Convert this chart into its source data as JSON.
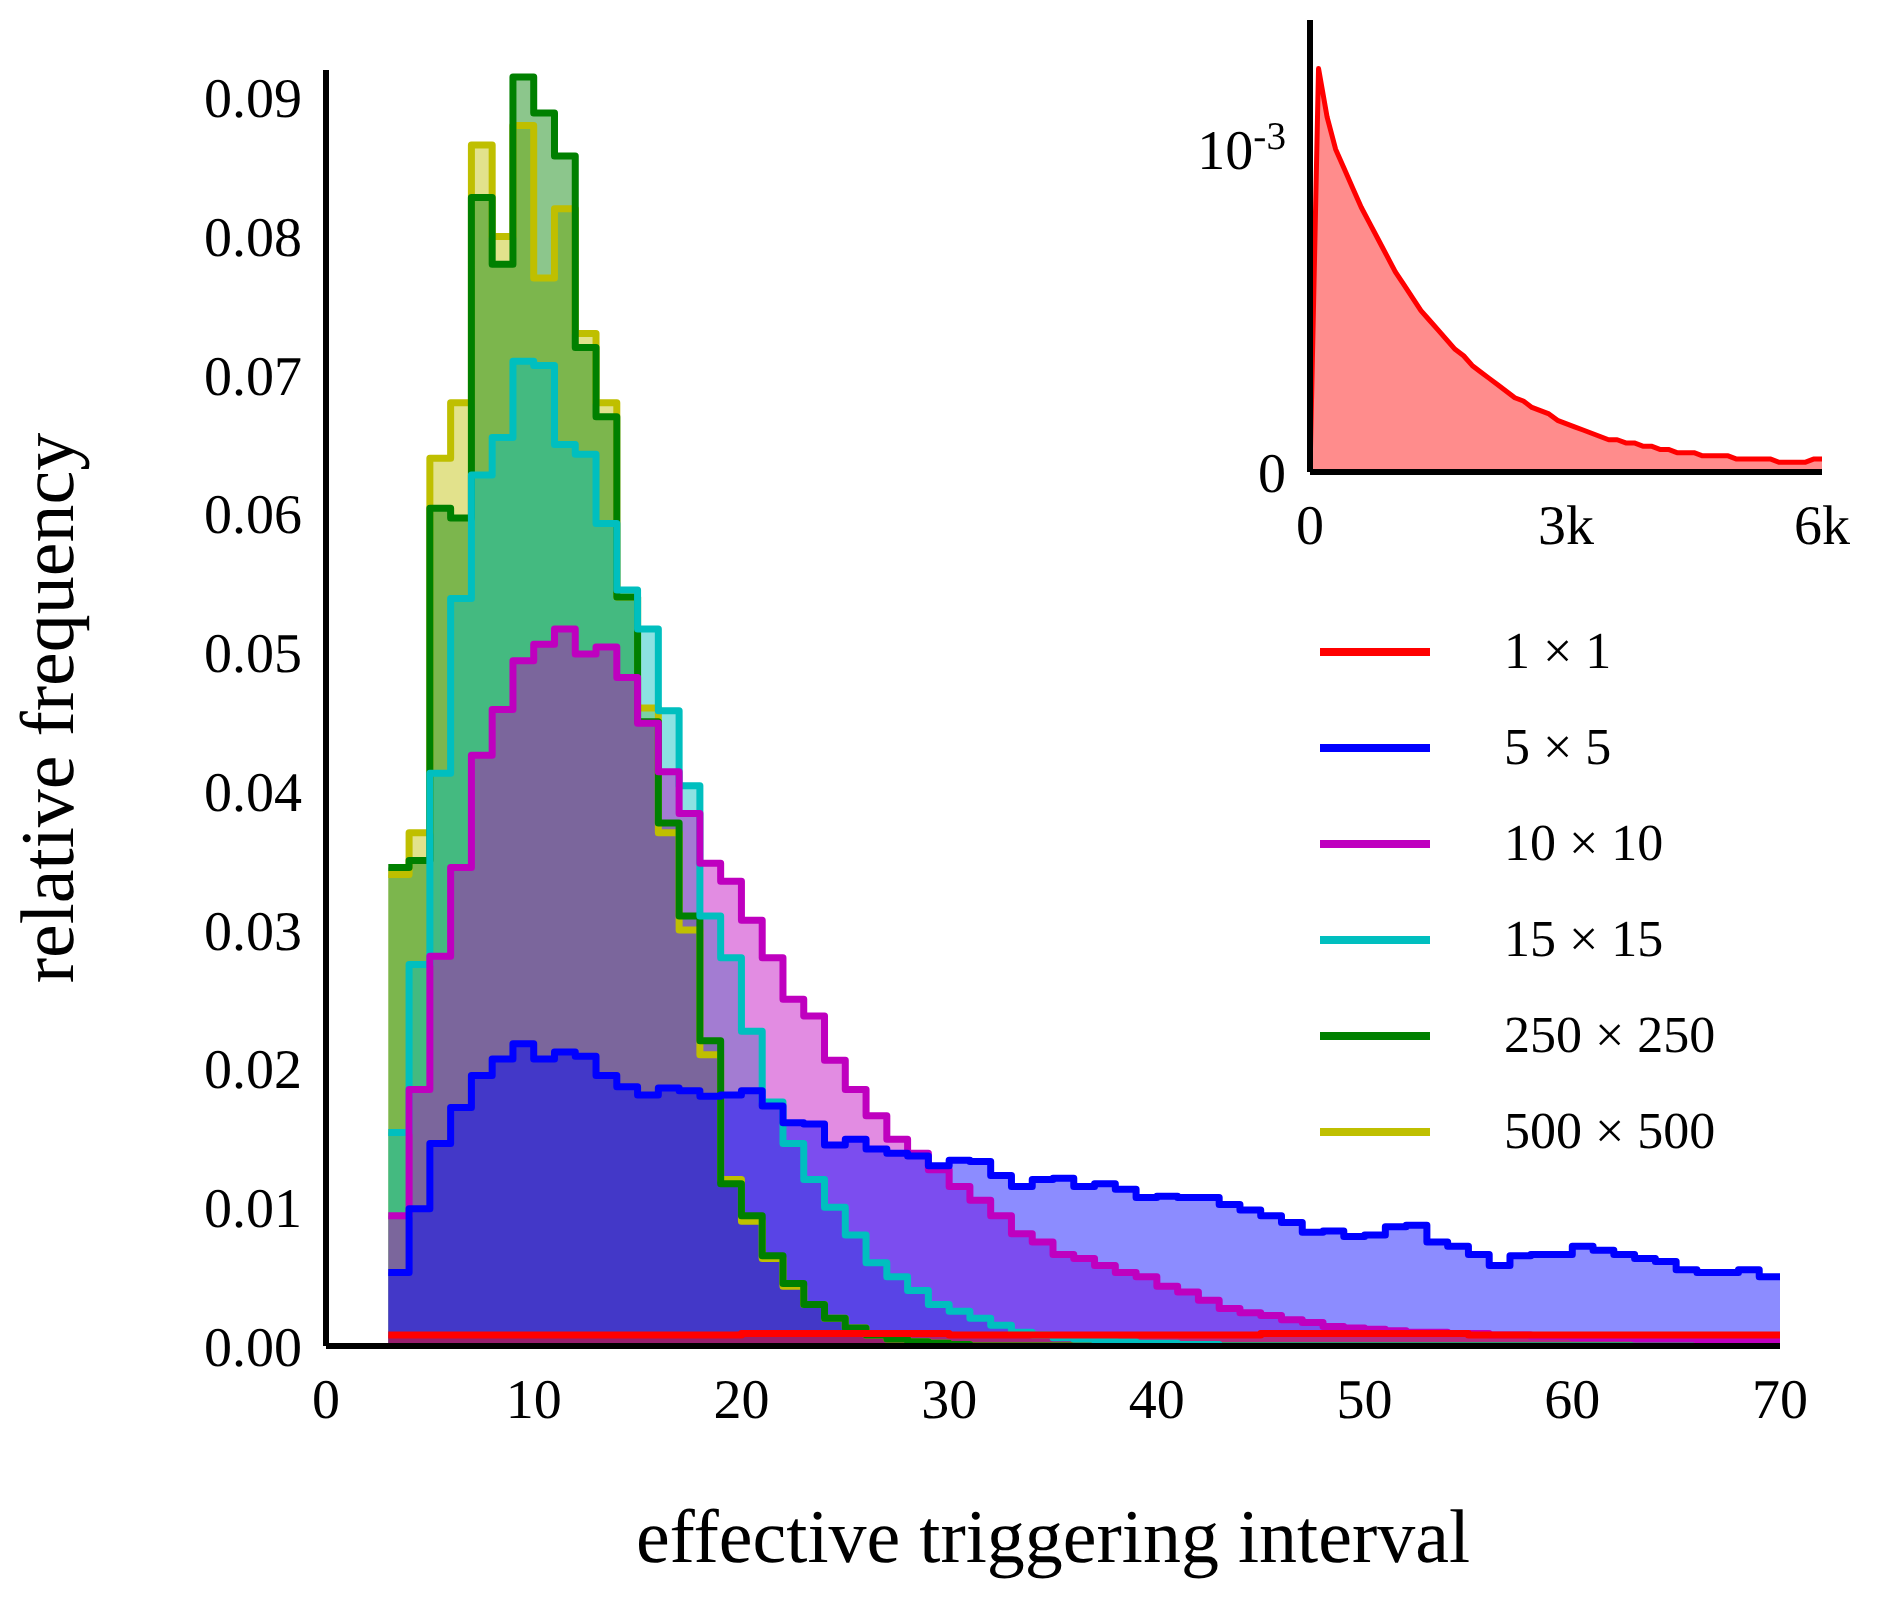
{
  "chart_data": [
    {
      "type": "area",
      "xlabel": "effective triggering interval",
      "ylabel": "relative frequency",
      "xlim": [
        0,
        70
      ],
      "ylim": [
        0,
        0.092
      ],
      "xticks": [
        0,
        10,
        20,
        30,
        40,
        50,
        60,
        70
      ],
      "yticks": [
        {
          "value": 0,
          "label": "0.00"
        },
        0.01,
        0.02,
        0.03,
        0.04,
        0.05,
        0.06,
        0.07,
        0.08,
        0.09
      ],
      "legend": "right",
      "x": [
        3,
        4,
        4,
        5,
        5,
        6,
        6,
        7,
        7,
        8,
        8,
        9,
        9,
        10,
        10,
        11,
        11,
        12,
        12,
        13,
        13,
        14,
        14,
        15,
        15,
        16,
        16,
        17,
        17,
        18,
        18,
        19,
        19,
        20,
        20,
        21,
        21,
        22,
        22,
        23,
        23,
        24,
        24,
        25,
        25,
        26,
        26,
        27,
        27,
        28,
        28,
        29,
        29,
        30,
        30,
        31,
        31,
        32,
        32,
        33,
        33,
        34,
        34,
        35,
        35,
        36,
        36,
        37,
        37,
        38,
        38,
        39,
        39,
        40,
        40,
        41,
        41,
        42,
        42,
        43,
        43,
        44,
        44,
        45,
        45,
        46,
        46,
        47,
        47,
        48,
        48,
        49,
        49,
        50,
        50,
        51,
        51,
        52,
        52,
        53,
        53,
        54,
        54,
        55,
        55,
        56,
        56,
        57,
        57,
        58,
        58,
        59,
        59,
        60,
        60,
        61,
        61,
        62,
        62,
        63,
        63,
        64,
        64,
        65,
        65,
        66,
        66,
        67,
        67,
        68,
        68,
        69,
        69,
        70
      ],
      "series": [
        {
          "name": "1 × 1",
          "color": "#ff0000",
          "values": [
            0.0008,
            0.0008,
            0.0008,
            0.0008,
            0.0008,
            0.0008,
            0.0008,
            0.0008,
            0.0008,
            0.0008,
            0.0008,
            0.0008,
            0.0008,
            0.0008,
            0.0008,
            0.0008,
            0.0008,
            0.0008,
            0.0008,
            0.0008,
            0.0008,
            0.0008,
            0.0008,
            0.0008,
            0.0008,
            0.0008,
            0.0008,
            0.0008,
            0.0008,
            0.0008,
            0.0008,
            0.0008,
            0.0008,
            0.0008,
            0.0009,
            0.0009,
            0.0009,
            0.0009,
            0.0009,
            0.0009,
            0.0009,
            0.0009,
            0.0009,
            0.0009,
            0.0009,
            0.0009,
            0.0009,
            0.0009,
            0.0009,
            0.0009,
            0.0009,
            0.0009,
            0.0009,
            0.0009,
            0.0008,
            0.0008,
            0.0008,
            0.0008,
            0.0008,
            0.0008,
            0.0008,
            0.0008,
            0.0008,
            0.0008,
            0.0008,
            0.0008,
            0.0008,
            0.0008,
            0.0008,
            0.0008,
            0.0008,
            0.0008,
            0.0008,
            0.0008,
            0.0008,
            0.0008,
            0.0008,
            0.0008,
            0.0008,
            0.0008,
            0.0008,
            0.0008,
            0.0008,
            0.0008,
            0.0009,
            0.0009,
            0.0009,
            0.0009,
            0.0009,
            0.0009,
            0.0009,
            0.0009,
            0.0009,
            0.0009,
            0.0009,
            0.0009,
            0.0009,
            0.0009,
            0.0009,
            0.0009,
            0.0009,
            0.0009,
            0.0009,
            0.0009,
            0.0008,
            0.0008,
            0.0008,
            0.0008,
            0.0008,
            0.0008,
            0.0008,
            0.0008,
            0.0008,
            0.0008,
            0.0008,
            0.0008,
            0.0008,
            0.0008,
            0.0008,
            0.0008,
            0.0008,
            0.0008,
            0.0008,
            0.0008,
            0.0008,
            0.0008,
            0.0008,
            0.0008,
            0.0008,
            0.0008,
            0.0008,
            0.0008,
            0.0008,
            0.0008
          ]
        },
        {
          "name": "5 × 5",
          "color": "#0000ff",
          "values": [
            0.0053,
            0.0053,
            0.0099,
            0.0099,
            0.0146,
            0.0146,
            0.0172,
            0.0172,
            0.0195,
            0.0195,
            0.0207,
            0.0207,
            0.0218,
            0.0218,
            0.0207,
            0.0207,
            0.0212,
            0.0212,
            0.0209,
            0.0209,
            0.0195,
            0.0195,
            0.0187,
            0.0187,
            0.0181,
            0.0181,
            0.0186,
            0.0186,
            0.0184,
            0.0184,
            0.018,
            0.018,
            0.0181,
            0.0181,
            0.0184,
            0.0184,
            0.0173,
            0.0173,
            0.0161,
            0.0161,
            0.016,
            0.016,
            0.0145,
            0.0145,
            0.0149,
            0.0149,
            0.0142,
            0.0142,
            0.0139,
            0.0139,
            0.0137,
            0.0137,
            0.013,
            0.013,
            0.0134,
            0.0134,
            0.0133,
            0.0133,
            0.0123,
            0.0123,
            0.0115,
            0.0115,
            0.012,
            0.012,
            0.0121,
            0.0121,
            0.0115,
            0.0115,
            0.0117,
            0.0117,
            0.0113,
            0.0113,
            0.0107,
            0.0107,
            0.0108,
            0.0108,
            0.0107,
            0.0107,
            0.0107,
            0.0107,
            0.0102,
            0.0102,
            0.0098,
            0.0098,
            0.0094,
            0.0094,
            0.0089,
            0.0089,
            0.0082,
            0.0082,
            0.0083,
            0.0083,
            0.0079,
            0.0079,
            0.008,
            0.008,
            0.0086,
            0.0086,
            0.0087,
            0.0087,
            0.0075,
            0.0075,
            0.0072,
            0.0072,
            0.0066,
            0.0066,
            0.0058,
            0.0058,
            0.0065,
            0.0065,
            0.0066,
            0.0066,
            0.0066,
            0.0066,
            0.0072,
            0.0072,
            0.0069,
            0.0069,
            0.0066,
            0.0066,
            0.0063,
            0.0063,
            0.0061,
            0.0061,
            0.0055,
            0.0055,
            0.0053,
            0.0053,
            0.0053,
            0.0053,
            0.0055,
            0.0055,
            0.005,
            0.005
          ]
        },
        {
          "name": "10 × 10",
          "color": "#bf00bf",
          "values": [
            0.0094,
            0.0094,
            0.0185,
            0.0185,
            0.0281,
            0.0281,
            0.0345,
            0.0345,
            0.0426,
            0.0426,
            0.0459,
            0.0459,
            0.0494,
            0.0494,
            0.0506,
            0.0506,
            0.0517,
            0.0517,
            0.0499,
            0.0499,
            0.0504,
            0.0504,
            0.0482,
            0.0482,
            0.0449,
            0.0449,
            0.0414,
            0.0414,
            0.0384,
            0.0384,
            0.0348,
            0.0348,
            0.0335,
            0.0335,
            0.0307,
            0.0307,
            0.028,
            0.028,
            0.025,
            0.025,
            0.0238,
            0.0238,
            0.0206,
            0.0206,
            0.0185,
            0.0185,
            0.0166,
            0.0166,
            0.0149,
            0.0149,
            0.0139,
            0.0139,
            0.0127,
            0.0127,
            0.0115,
            0.0115,
            0.0105,
            0.0105,
            0.0094,
            0.0094,
            0.0081,
            0.0081,
            0.0075,
            0.0075,
            0.0066,
            0.0066,
            0.0063,
            0.0063,
            0.0058,
            0.0058,
            0.0053,
            0.0053,
            0.005,
            0.005,
            0.0043,
            0.0043,
            0.0039,
            0.0039,
            0.0033,
            0.0033,
            0.0027,
            0.0027,
            0.0024,
            0.0024,
            0.0022,
            0.0022,
            0.0019,
            0.0019,
            0.0017,
            0.0017,
            0.0014,
            0.0014,
            0.0013,
            0.0013,
            0.0012,
            0.0012,
            0.0011,
            0.0011,
            0.001,
            0.001,
            0.001,
            0.001,
            0.0009,
            0.0009,
            0.0009,
            0.0009,
            0.0008,
            0.0008,
            0.0008,
            0.0008,
            0.0007,
            0.0007,
            0.0007,
            0.0007,
            0.0006,
            0.0006,
            0.0006,
            0.0006,
            0.0006,
            0.0006,
            0.0005,
            0.0005,
            0.0005,
            0.0005,
            0.0005,
            0.0005,
            0.0004,
            0.0004,
            0.0004,
            0.0004,
            0.0004,
            0.0004,
            0.0004,
            0.0004
          ]
        },
        {
          "name": "15 × 15",
          "color": "#00bfbf",
          "values": [
            0.0154,
            0.0154,
            0.0275,
            0.0275,
            0.0413,
            0.0413,
            0.0539,
            0.0539,
            0.0628,
            0.0628,
            0.0655,
            0.0655,
            0.071,
            0.071,
            0.0707,
            0.0707,
            0.065,
            0.065,
            0.0643,
            0.0643,
            0.0593,
            0.0593,
            0.0545,
            0.0545,
            0.0517,
            0.0517,
            0.0458,
            0.0458,
            0.0404,
            0.0404,
            0.031,
            0.031,
            0.028,
            0.028,
            0.0227,
            0.0227,
            0.0176,
            0.0176,
            0.0146,
            0.0146,
            0.012,
            0.012,
            0.01,
            0.01,
            0.008,
            0.008,
            0.006,
            0.006,
            0.005,
            0.005,
            0.004,
            0.004,
            0.003,
            0.003,
            0.0025,
            0.0025,
            0.002,
            0.002,
            0.0015,
            0.0015,
            0.001,
            0.001,
            0.0008,
            0.0008,
            0.0006,
            0.0006,
            0.0005,
            0.0005,
            0.0004,
            0.0004,
            0.0003,
            0.0003,
            0.0002,
            0.0002,
            0.0002,
            0.0002,
            0.0001,
            0.0001,
            0.0001,
            0.0001,
            0,
            0,
            0,
            0,
            0,
            0,
            0,
            0,
            0,
            0,
            0,
            0,
            0,
            0,
            0,
            0,
            0,
            0,
            0,
            0,
            0,
            0,
            0,
            0,
            0,
            0,
            0,
            0,
            0,
            0,
            0,
            0,
            0,
            0,
            0,
            0,
            0,
            0,
            0,
            0,
            0,
            0,
            0,
            0,
            0,
            0,
            0,
            0,
            0,
            0,
            0,
            0,
            0,
            0
          ]
        },
        {
          "name": "250 × 250",
          "color": "#008000",
          "values": [
            0.0345,
            0.0345,
            0.035,
            0.035,
            0.0604,
            0.0604,
            0.0597,
            0.0597,
            0.0828,
            0.0828,
            0.078,
            0.078,
            0.0915,
            0.0915,
            0.0889,
            0.0889,
            0.0858,
            0.0858,
            0.072,
            0.072,
            0.067,
            0.067,
            0.054,
            0.054,
            0.045,
            0.045,
            0.0377,
            0.0377,
            0.031,
            0.031,
            0.022,
            0.022,
            0.0117,
            0.0117,
            0.0094,
            0.0094,
            0.0065,
            0.0065,
            0.0045,
            0.0045,
            0.003,
            0.003,
            0.002,
            0.002,
            0.0013,
            0.0013,
            0.0008,
            0.0008,
            0.0005,
            0.0005,
            0.0003,
            0.0003,
            0.0002,
            0.0002,
            0.0001,
            0.0001,
            0,
            0,
            0,
            0,
            0,
            0,
            0,
            0,
            0,
            0,
            0,
            0,
            0,
            0,
            0,
            0,
            0,
            0,
            0,
            0,
            0,
            0,
            0,
            0,
            0,
            0,
            0,
            0,
            0,
            0,
            0,
            0,
            0,
            0,
            0,
            0,
            0,
            0,
            0,
            0,
            0,
            0,
            0,
            0,
            0,
            0,
            0,
            0,
            0,
            0,
            0,
            0,
            0,
            0,
            0,
            0,
            0,
            0,
            0,
            0,
            0,
            0,
            0,
            0,
            0,
            0,
            0,
            0,
            0,
            0,
            0,
            0,
            0,
            0,
            0,
            0,
            0,
            0
          ]
        },
        {
          "name": "500 × 500",
          "color": "#bfbf00",
          "values": [
            0.034,
            0.034,
            0.037,
            0.037,
            0.064,
            0.064,
            0.068,
            0.068,
            0.0866,
            0.0866,
            0.08,
            0.08,
            0.088,
            0.088,
            0.077,
            0.077,
            0.082,
            0.082,
            0.073,
            0.073,
            0.068,
            0.068,
            0.054,
            0.054,
            0.046,
            0.046,
            0.037,
            0.037,
            0.03,
            0.03,
            0.021,
            0.021,
            0.012,
            0.012,
            0.009,
            0.009,
            0.0063,
            0.0063,
            0.0043,
            0.0043,
            0.003,
            0.003,
            0.002,
            0.002,
            0.0013,
            0.0013,
            0.0008,
            0.0008,
            0.0005,
            0.0005,
            0.0003,
            0.0003,
            0.0002,
            0.0002,
            0.0001,
            0.0001,
            0,
            0,
            0,
            0,
            0,
            0,
            0,
            0,
            0,
            0,
            0,
            0,
            0,
            0,
            0,
            0,
            0,
            0,
            0,
            0,
            0,
            0,
            0,
            0,
            0,
            0,
            0,
            0,
            0,
            0,
            0,
            0,
            0,
            0,
            0,
            0,
            0,
            0,
            0,
            0,
            0,
            0,
            0,
            0,
            0,
            0,
            0,
            0,
            0,
            0,
            0,
            0,
            0,
            0,
            0,
            0,
            0,
            0,
            0,
            0,
            0,
            0,
            0,
            0,
            0,
            0,
            0,
            0,
            0,
            0,
            0,
            0,
            0,
            0,
            0,
            0,
            0,
            0
          ]
        }
      ]
    },
    {
      "type": "area",
      "xlim": [
        0,
        6000
      ],
      "ylim": [
        0,
        0.0014
      ],
      "xticks": [
        0,
        {
          "value": 3000,
          "label": "3k"
        },
        {
          "value": 6000,
          "label": "6k"
        }
      ],
      "yticks": [
        0,
        {
          "value": 0.001,
          "label": "10$^{-3}$"
        }
      ],
      "x": [
        0,
        100,
        200,
        300,
        400,
        500,
        600,
        700,
        800,
        900,
        1000,
        1100,
        1200,
        1300,
        1400,
        1500,
        1600,
        1700,
        1800,
        1900,
        2000,
        2100,
        2200,
        2300,
        2400,
        2500,
        2600,
        2700,
        2800,
        2900,
        3000,
        3100,
        3200,
        3300,
        3400,
        3500,
        3600,
        3700,
        3800,
        3900,
        4000,
        4100,
        4200,
        4300,
        4400,
        4500,
        4600,
        4700,
        4800,
        4900,
        5000,
        5100,
        5200,
        5300,
        5400,
        5500,
        5600,
        5700,
        5800,
        5900,
        6000
      ],
      "series": [
        {
          "color": "#ff0000",
          "values": [
            0,
            0.00125,
            0.0011,
            0.001,
            0.00094,
            0.00088,
            0.00082,
            0.00077,
            0.00072,
            0.00067,
            0.00062,
            0.00058,
            0.00054,
            0.0005,
            0.00047,
            0.00044,
            0.00041,
            0.00038,
            0.00036,
            0.00033,
            0.00031,
            0.00029,
            0.00027,
            0.00025,
            0.00023,
            0.00022,
            0.0002,
            0.00019,
            0.00018,
            0.00016,
            0.00015,
            0.00014,
            0.00013,
            0.00012,
            0.00011,
            0.0001,
            0.0001,
            9e-05,
            9e-05,
            8e-05,
            8e-05,
            7e-05,
            7e-05,
            6e-05,
            6e-05,
            6e-05,
            5e-05,
            5e-05,
            5e-05,
            5e-05,
            4e-05,
            4e-05,
            4e-05,
            4e-05,
            4e-05,
            3e-05,
            3e-05,
            3e-05,
            3e-05,
            4e-05,
            4e-05
          ]
        }
      ]
    }
  ]
}
